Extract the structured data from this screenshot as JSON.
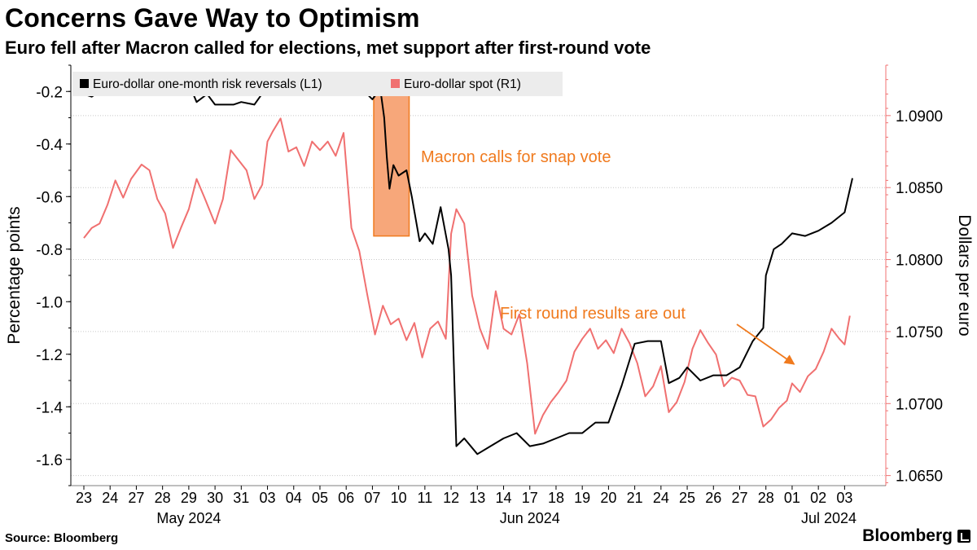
{
  "header": {
    "title": "Concerns Gave Way to Optimism",
    "subtitle": "Euro fell after Macron called for elections, met support after first-round vote"
  },
  "footer": {
    "source": "Source: Bloomberg",
    "brand": "Bloomberg"
  },
  "colors": {
    "series_risk": "#000000",
    "series_spot": "#f07070",
    "annotation": "#f07a1e",
    "highlight_fill": "#f7a77a",
    "grid": "#c8c8c8",
    "legend_bg": "#ececec"
  },
  "chart_data": {
    "type": "line",
    "title": "Concerns Gave Way to Optimism",
    "subtitle": "Euro fell after Macron called for elections, met support after first-round vote",
    "x_ticks": [
      "23",
      "24",
      "27",
      "28",
      "29",
      "30",
      "31",
      "03",
      "04",
      "05",
      "06",
      "07",
      "10",
      "11",
      "12",
      "13",
      "14",
      "17",
      "18",
      "19",
      "20",
      "21",
      "24",
      "25",
      "26",
      "27",
      "28",
      "01",
      "02",
      "03"
    ],
    "month_labels": [
      {
        "label": "May 2024",
        "tick_index": 4
      },
      {
        "label": "Jun 2024",
        "tick_index": 17
      },
      {
        "label": "Jul 2024",
        "tick_index": 28.4
      }
    ],
    "left_axis": {
      "label": "Percentage points",
      "range": [
        -1.7,
        -0.1
      ],
      "ticks": [
        -0.2,
        -0.4,
        -0.6,
        -0.8,
        -1.0,
        -1.2,
        -1.4,
        -1.6
      ],
      "tick_labels": [
        "-0.2",
        "-0.4",
        "-0.6",
        "-0.8",
        "-1.0",
        "-1.2",
        "-1.4",
        "-1.6"
      ]
    },
    "right_axis": {
      "label": "Dollars per euro",
      "range": [
        1.0643,
        1.0935
      ],
      "ticks": [
        1.09,
        1.085,
        1.08,
        1.075,
        1.07,
        1.065
      ],
      "tick_labels": [
        "1.0900",
        "1.0850",
        "1.0800",
        "1.0750",
        "1.0700",
        "1.0650"
      ]
    },
    "legend": {
      "placement": "top-left",
      "items": [
        {
          "name": "Euro-dollar one-month risk reversals (L1)",
          "color": "#000000"
        },
        {
          "name": "Euro-dollar spot (R1)",
          "color": "#f07070"
        }
      ]
    },
    "series": [
      {
        "name": "Euro-dollar one-month risk reversals (L1)",
        "axis": "left",
        "color": "#000000",
        "x": [
          0,
          0.3,
          0.6,
          1,
          1.5,
          2,
          2.5,
          3,
          3.5,
          4,
          4.3,
          4.7,
          5,
          5.3,
          5.7,
          6,
          6.5,
          7,
          7.5,
          8,
          8.5,
          9,
          9.5,
          10,
          10.5,
          11,
          11.3,
          11.45,
          11.55,
          11.65,
          11.8,
          12,
          12.3,
          12.5,
          12.8,
          13,
          13.3,
          13.6,
          13.9,
          14,
          14.2,
          14.5,
          15,
          15.5,
          16,
          16.5,
          17,
          17.5,
          18,
          18.5,
          19,
          19.5,
          20,
          20.5,
          21,
          21.5,
          22,
          22.3,
          22.7,
          23,
          23.5,
          24,
          24.5,
          25,
          25.5,
          25.9,
          26,
          26.3,
          26.6,
          27,
          27.5,
          28,
          28.5,
          29,
          29.3
        ],
        "y": [
          -0.21,
          -0.22,
          -0.2,
          -0.21,
          -0.18,
          -0.2,
          -0.19,
          -0.16,
          -0.18,
          -0.17,
          -0.24,
          -0.21,
          -0.25,
          -0.25,
          -0.25,
          -0.24,
          -0.25,
          -0.18,
          -0.17,
          -0.19,
          -0.17,
          -0.16,
          -0.17,
          -0.17,
          -0.18,
          -0.23,
          -0.19,
          -0.3,
          -0.45,
          -0.57,
          -0.48,
          -0.52,
          -0.5,
          -0.6,
          -0.77,
          -0.74,
          -0.78,
          -0.64,
          -0.8,
          -0.9,
          -1.55,
          -1.52,
          -1.58,
          -1.55,
          -1.52,
          -1.5,
          -1.55,
          -1.54,
          -1.52,
          -1.5,
          -1.5,
          -1.46,
          -1.46,
          -1.32,
          -1.16,
          -1.15,
          -1.15,
          -1.31,
          -1.29,
          -1.25,
          -1.3,
          -1.28,
          -1.28,
          -1.25,
          -1.15,
          -1.1,
          -0.9,
          -0.8,
          -0.78,
          -0.74,
          -0.75,
          -0.73,
          -0.7,
          -0.66,
          -0.53
        ]
      },
      {
        "name": "Euro-dollar spot (R1)",
        "axis": "right",
        "color": "#f07070",
        "x": [
          0,
          0.3,
          0.6,
          0.9,
          1.2,
          1.5,
          1.8,
          2.2,
          2.5,
          2.8,
          3.1,
          3.4,
          3.7,
          4,
          4.3,
          4.6,
          5,
          5.3,
          5.6,
          5.9,
          6.2,
          6.5,
          6.8,
          7,
          7.2,
          7.5,
          7.8,
          8.1,
          8.4,
          8.7,
          9,
          9.3,
          9.6,
          9.9,
          10.2,
          10.5,
          10.8,
          11.1,
          11.4,
          11.7,
          12,
          12.3,
          12.6,
          12.9,
          13.2,
          13.5,
          13.8,
          14,
          14.2,
          14.5,
          14.8,
          15.1,
          15.4,
          15.7,
          16,
          16.3,
          16.6,
          16.9,
          17.2,
          17.5,
          17.8,
          18.1,
          18.4,
          18.7,
          19,
          19.3,
          19.6,
          19.9,
          20.2,
          20.5,
          20.8,
          21.1,
          21.4,
          21.7,
          22,
          22.3,
          22.6,
          22.9,
          23.2,
          23.5,
          23.8,
          24.1,
          24.4,
          24.7,
          25,
          25.3,
          25.6,
          25.9,
          26.2,
          26.5,
          26.8,
          27,
          27.3,
          27.6,
          27.9,
          28.2,
          28.5,
          28.8,
          29,
          29.2
        ],
        "y": [
          1.0815,
          1.0822,
          1.0825,
          1.0838,
          1.0855,
          1.0843,
          1.0856,
          1.0866,
          1.0862,
          1.0842,
          1.0832,
          1.0808,
          1.0822,
          1.0835,
          1.0856,
          1.0843,
          1.0825,
          1.0842,
          1.0876,
          1.0869,
          1.0862,
          1.0842,
          1.0852,
          1.0882,
          1.0889,
          1.0898,
          1.0875,
          1.0878,
          1.0865,
          1.0882,
          1.0876,
          1.0882,
          1.0872,
          1.0888,
          1.0822,
          1.0806,
          1.0776,
          1.0748,
          1.0768,
          1.0755,
          1.0759,
          1.0744,
          1.0756,
          1.0732,
          1.0752,
          1.0757,
          1.0745,
          1.0818,
          1.0835,
          1.0825,
          1.0775,
          1.0752,
          1.0738,
          1.0778,
          1.0752,
          1.0748,
          1.0762,
          1.0728,
          1.0679,
          1.0692,
          1.0701,
          1.0708,
          1.0716,
          1.0736,
          1.0745,
          1.0752,
          1.0738,
          1.0744,
          1.0735,
          1.0752,
          1.0742,
          1.0728,
          1.0705,
          1.0712,
          1.0726,
          1.0694,
          1.0701,
          1.0715,
          1.0738,
          1.0751,
          1.0742,
          1.0734,
          1.0712,
          1.0718,
          1.0716,
          1.0706,
          1.0705,
          1.0684,
          1.0689,
          1.0697,
          1.0702,
          1.0714,
          1.0708,
          1.0719,
          1.0724,
          1.0736,
          1.0752,
          1.0745,
          1.0741,
          1.0761
        ]
      }
    ],
    "annotations": [
      {
        "text": "Macron calls for snap vote",
        "x_from": 11.05,
        "x_to": 12.4,
        "y_from": -0.15,
        "y_to": -0.75
      },
      {
        "text": "First round results are out",
        "arrow_to_x": 27.2,
        "arrow_to_y": -1.25
      }
    ]
  }
}
